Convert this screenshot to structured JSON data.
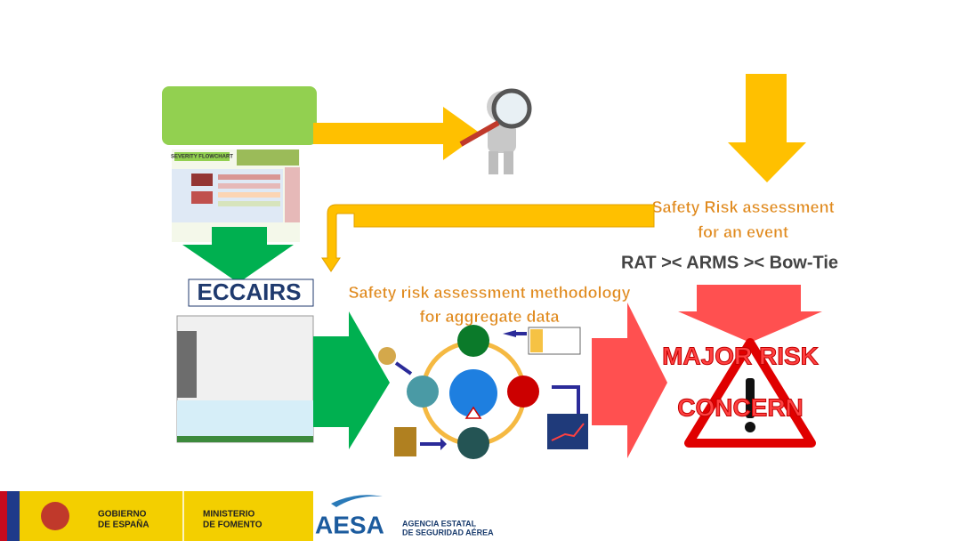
{
  "flowchart": {
    "title": "SEVERITY FLOWCHART"
  },
  "event_assessment": {
    "line1": "Safety Risk assessment",
    "line2": "for an event",
    "tools": "RAT >< ARMS >< Bow-Tie"
  },
  "eccairs": {
    "logo": "ECCAIRS"
  },
  "aggregate": {
    "line1": "Safety risk assessment methodology",
    "line2": "for aggregate data"
  },
  "outcome": {
    "line1": "MAJOR RISK",
    "line2": "CONCERN"
  },
  "footer": {
    "gov1": "GOBIERNO",
    "gov2": "DE ESPAÑA",
    "min1": "MINISTERIO",
    "min2": "DE FOMENTO",
    "aesa": "AESA",
    "agency1": "AGENCIA ESTATAL",
    "agency2": "DE SEGURIDAD AÉREA"
  }
}
